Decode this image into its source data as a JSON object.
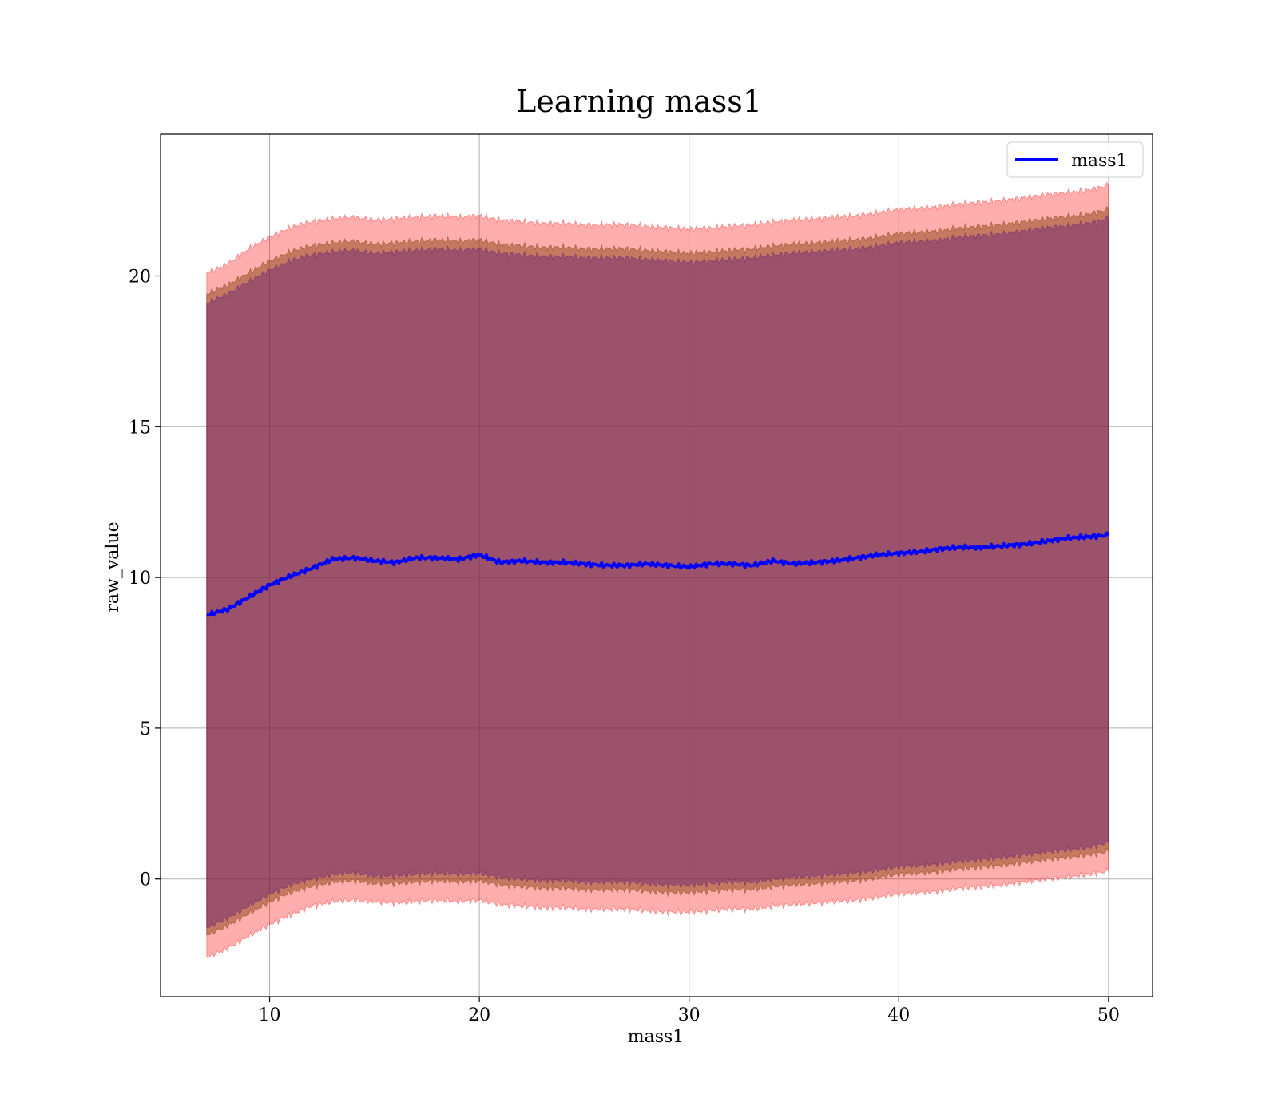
{
  "chart_data": {
    "type": "line",
    "title": "Learning mass1",
    "xlabel": "mass1",
    "ylabel": "raw_value",
    "xlim": [
      4.8,
      52.1
    ],
    "ylim": [
      -3.9,
      24.7
    ],
    "x_ticks": [
      10,
      20,
      30,
      40,
      50
    ],
    "y_ticks": [
      0,
      5,
      10,
      15,
      20
    ],
    "grid": true,
    "legend": {
      "position": "top-right",
      "entries": [
        "mass1"
      ]
    },
    "colors": {
      "line": "#0000ff",
      "band_outer": "#ff0000",
      "band_middle": "#8b4513",
      "band_inner": "#4b0082",
      "grid": "#b0b0b0"
    },
    "series": [
      {
        "name": "mass1",
        "x": [
          7,
          8,
          9,
          10,
          11,
          12,
          13,
          14,
          15,
          16,
          17,
          18,
          19,
          20,
          21,
          22,
          23,
          24,
          25,
          26,
          27,
          28,
          29,
          30,
          31,
          32,
          33,
          34,
          35,
          36,
          37,
          38,
          39,
          40,
          41,
          42,
          43,
          44,
          45,
          46,
          47,
          48,
          49,
          50
        ],
        "y": [
          8.75,
          8.95,
          9.35,
          9.75,
          10.05,
          10.3,
          10.6,
          10.65,
          10.55,
          10.5,
          10.65,
          10.65,
          10.6,
          10.75,
          10.5,
          10.55,
          10.5,
          10.5,
          10.45,
          10.4,
          10.4,
          10.45,
          10.4,
          10.35,
          10.45,
          10.45,
          10.4,
          10.55,
          10.45,
          10.5,
          10.55,
          10.65,
          10.75,
          10.8,
          10.85,
          10.95,
          11.0,
          11.0,
          11.05,
          11.1,
          11.2,
          11.3,
          11.35,
          11.4
        ],
        "bands": {
          "outer_upper": [
            20.1,
            20.4,
            20.9,
            21.3,
            21.6,
            21.8,
            21.9,
            21.95,
            21.85,
            21.9,
            21.95,
            22.0,
            21.95,
            22.0,
            21.85,
            21.8,
            21.75,
            21.75,
            21.7,
            21.7,
            21.7,
            21.65,
            21.6,
            21.55,
            21.6,
            21.65,
            21.7,
            21.8,
            21.85,
            21.9,
            21.95,
            22.0,
            22.1,
            22.2,
            22.25,
            22.3,
            22.4,
            22.45,
            22.5,
            22.6,
            22.7,
            22.75,
            22.85,
            23.0
          ],
          "middle_upper": [
            19.4,
            19.7,
            20.1,
            20.5,
            20.8,
            21.0,
            21.1,
            21.15,
            21.05,
            21.1,
            21.15,
            21.2,
            21.15,
            21.2,
            21.05,
            21.0,
            20.95,
            20.95,
            20.9,
            20.9,
            20.9,
            20.85,
            20.8,
            20.75,
            20.8,
            20.85,
            20.9,
            21.0,
            21.05,
            21.1,
            21.15,
            21.2,
            21.3,
            21.4,
            21.45,
            21.5,
            21.6,
            21.65,
            21.7,
            21.8,
            21.9,
            21.95,
            22.05,
            22.2
          ],
          "inner_upper": [
            19.1,
            19.4,
            19.8,
            20.2,
            20.5,
            20.7,
            20.8,
            20.85,
            20.75,
            20.8,
            20.85,
            20.9,
            20.85,
            20.9,
            20.75,
            20.7,
            20.65,
            20.65,
            20.6,
            20.6,
            20.6,
            20.55,
            20.5,
            20.45,
            20.5,
            20.55,
            20.6,
            20.7,
            20.75,
            20.8,
            20.85,
            20.9,
            21.0,
            21.1,
            21.15,
            21.2,
            21.3,
            21.35,
            21.4,
            21.5,
            21.6,
            21.65,
            21.75,
            21.9
          ],
          "inner_lower": [
            -1.6,
            -1.3,
            -0.9,
            -0.5,
            -0.2,
            0.0,
            0.15,
            0.2,
            0.1,
            0.1,
            0.15,
            0.2,
            0.15,
            0.2,
            0.05,
            0.0,
            -0.05,
            -0.05,
            -0.1,
            -0.1,
            -0.1,
            -0.15,
            -0.2,
            -0.2,
            -0.15,
            -0.1,
            -0.1,
            0.0,
            0.05,
            0.1,
            0.15,
            0.2,
            0.3,
            0.4,
            0.45,
            0.5,
            0.6,
            0.65,
            0.7,
            0.8,
            0.9,
            0.95,
            1.05,
            1.2
          ],
          "middle_lower": [
            -1.85,
            -1.55,
            -1.15,
            -0.75,
            -0.45,
            -0.25,
            -0.1,
            -0.05,
            -0.15,
            -0.15,
            -0.1,
            -0.05,
            -0.1,
            -0.05,
            -0.2,
            -0.25,
            -0.3,
            -0.3,
            -0.35,
            -0.35,
            -0.35,
            -0.4,
            -0.45,
            -0.45,
            -0.4,
            -0.35,
            -0.35,
            -0.25,
            -0.2,
            -0.15,
            -0.1,
            -0.05,
            0.05,
            0.15,
            0.2,
            0.25,
            0.35,
            0.4,
            0.45,
            0.55,
            0.65,
            0.7,
            0.8,
            0.9
          ],
          "outer_lower": [
            -2.6,
            -2.3,
            -1.9,
            -1.5,
            -1.2,
            -0.9,
            -0.75,
            -0.7,
            -0.75,
            -0.8,
            -0.75,
            -0.7,
            -0.75,
            -0.7,
            -0.85,
            -0.9,
            -0.95,
            -0.95,
            -1.0,
            -1.0,
            -1.0,
            -1.05,
            -1.1,
            -1.1,
            -1.05,
            -1.0,
            -1.0,
            -0.9,
            -0.85,
            -0.8,
            -0.75,
            -0.7,
            -0.6,
            -0.5,
            -0.45,
            -0.4,
            -0.3,
            -0.25,
            -0.2,
            -0.1,
            0.0,
            0.05,
            0.15,
            0.25
          ]
        }
      }
    ]
  }
}
